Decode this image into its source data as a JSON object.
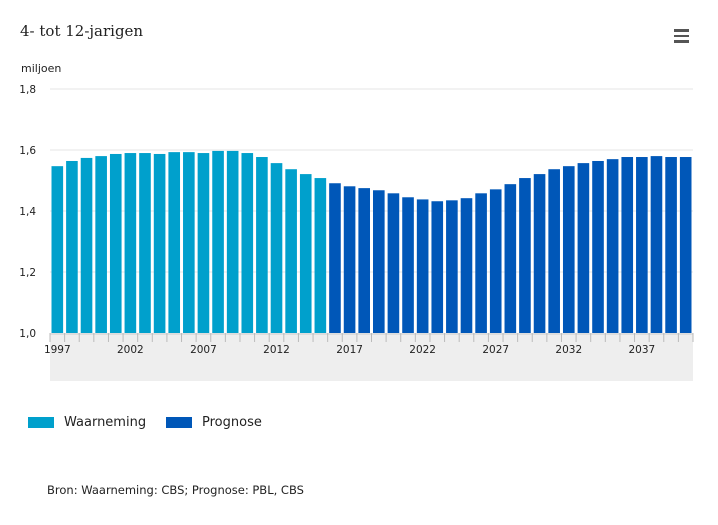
{
  "chart_data": {
    "type": "bar",
    "title": "4- tot 12-jarigen",
    "ylabel": "miljoen",
    "xlabel": "",
    "ylim": [
      1.0,
      1.8
    ],
    "yticks": [
      "1,0",
      "1,2",
      "1,4",
      "1,6",
      "1,8"
    ],
    "xticks": [
      "1997",
      "2002",
      "2007",
      "2012",
      "2017",
      "2022",
      "2027",
      "2032",
      "2037"
    ],
    "grid": true,
    "legend_position": "bottom-left",
    "categories": [
      1997,
      1998,
      1999,
      2000,
      2001,
      2002,
      2003,
      2004,
      2005,
      2006,
      2007,
      2008,
      2009,
      2010,
      2011,
      2012,
      2013,
      2014,
      2015,
      2016,
      2017,
      2018,
      2019,
      2020,
      2021,
      2022,
      2023,
      2024,
      2025,
      2026,
      2027,
      2028,
      2029,
      2030,
      2031,
      2032,
      2033,
      2034,
      2035,
      2036,
      2037,
      2038,
      2039,
      2040
    ],
    "series": [
      {
        "name": "Waarneming",
        "color": "#00a0cc",
        "from": 1997,
        "to": 2015
      },
      {
        "name": "Prognose",
        "color": "#0057b8",
        "from": 2016,
        "to": 2040
      }
    ],
    "values": [
      1.547,
      1.564,
      1.574,
      1.58,
      1.587,
      1.59,
      1.59,
      1.587,
      1.593,
      1.593,
      1.59,
      1.597,
      1.597,
      1.59,
      1.577,
      1.557,
      1.537,
      1.521,
      1.508,
      1.491,
      1.481,
      1.475,
      1.468,
      1.458,
      1.445,
      1.438,
      1.432,
      1.435,
      1.442,
      1.458,
      1.471,
      1.488,
      1.508,
      1.521,
      1.537,
      1.547,
      1.557,
      1.564,
      1.57,
      1.577,
      1.577,
      1.58,
      1.577,
      1.577
    ]
  },
  "source": "Bron: Waarneming: CBS; Prognose: PBL, CBS",
  "menu_icon": "hamburger-menu-icon"
}
